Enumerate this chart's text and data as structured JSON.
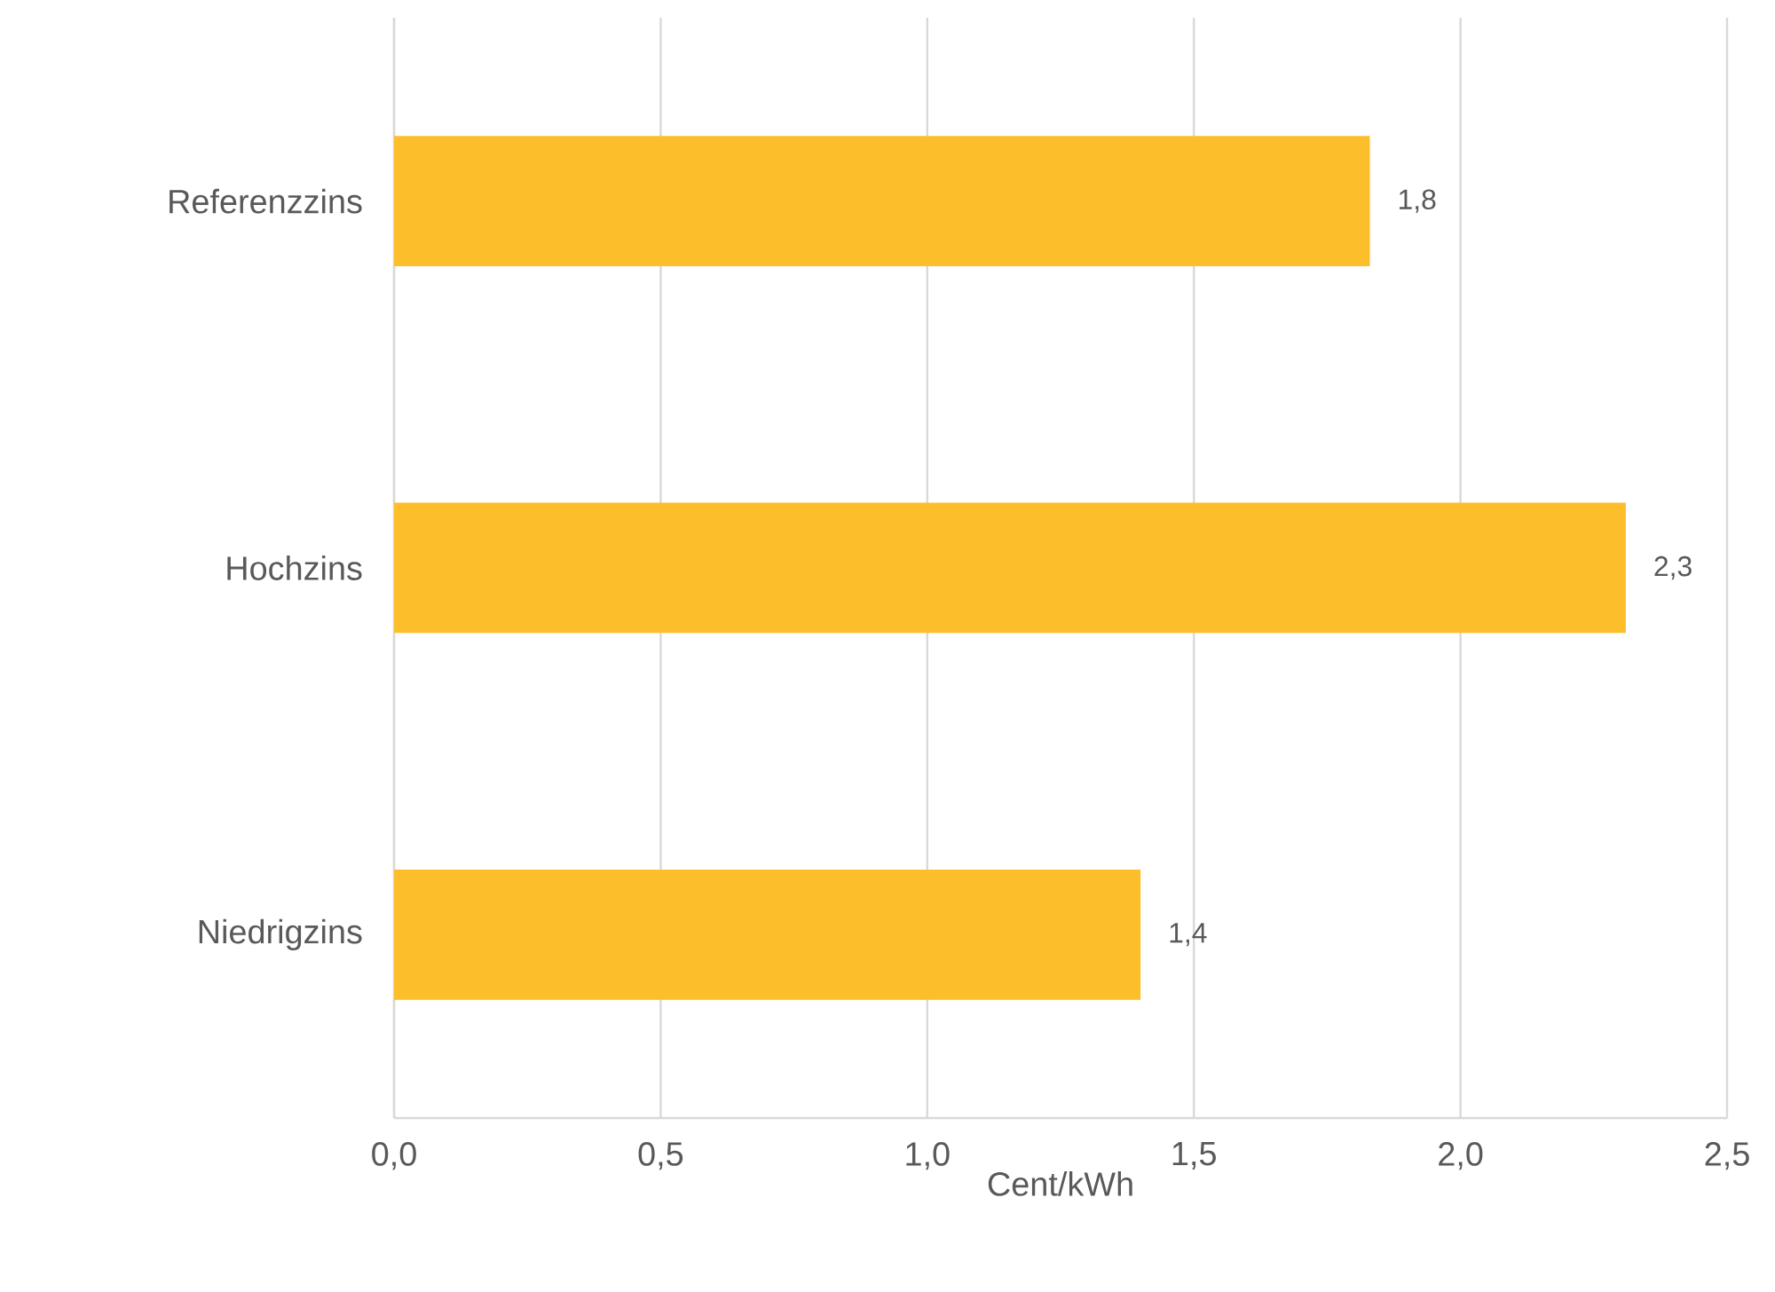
{
  "chart_data": {
    "type": "bar",
    "orientation": "horizontal",
    "categories": [
      "Referenzzins",
      "Hochzins",
      "Niedrigzins"
    ],
    "values": [
      1.83,
      2.31,
      1.4
    ],
    "value_labels": [
      "1,8",
      "2,3",
      "1,4"
    ],
    "color": "#fcbe2a",
    "xlabel": "Cent/kWh",
    "xlim": [
      0,
      2.5
    ],
    "xticks": [
      {
        "value": 0,
        "label": "0,0"
      },
      {
        "value": 0.5,
        "label": "0,5"
      },
      {
        "value": 1,
        "label": "1,0"
      },
      {
        "value": 1.5,
        "label": "1,5"
      },
      {
        "value": 2,
        "label": "2,0"
      },
      {
        "value": 2.5,
        "label": "2,5"
      }
    ],
    "grid": "x"
  }
}
